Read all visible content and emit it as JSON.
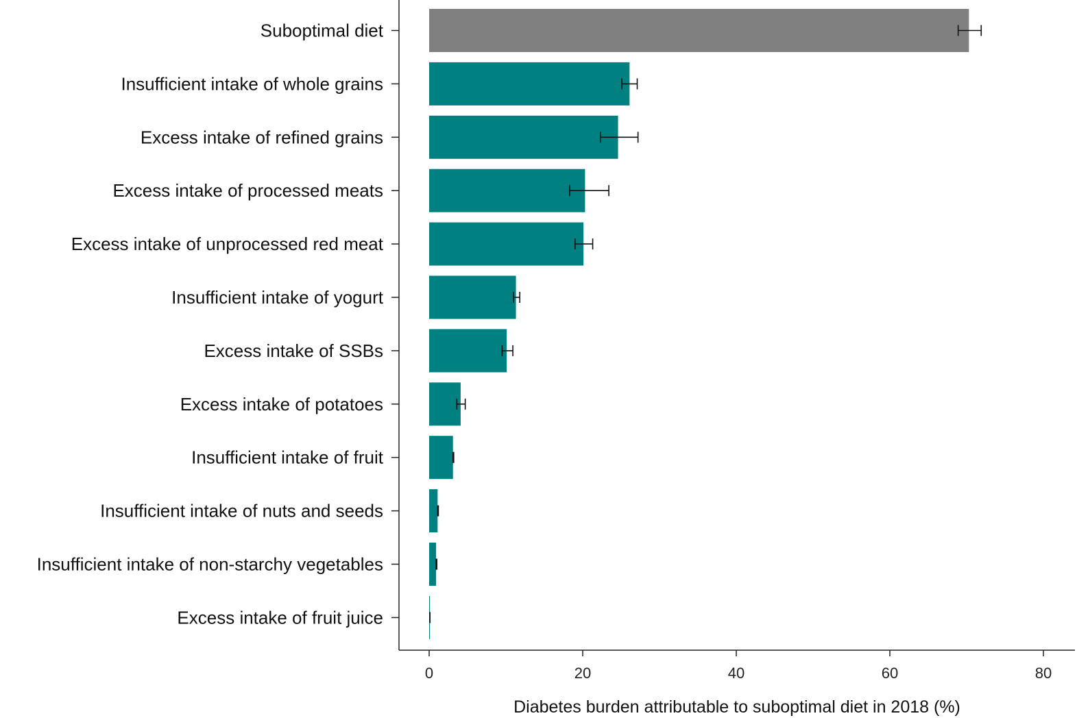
{
  "chart_data": {
    "type": "bar",
    "orientation": "horizontal",
    "title": "",
    "xlabel": "Diabetes burden attributable to suboptimal diet in 2018 (%)",
    "ylabel": "",
    "xlim": [
      0,
      80
    ],
    "xticks": [
      0,
      20,
      40,
      60,
      80
    ],
    "grid": false,
    "legend": "none",
    "colors": {
      "total": "#808080",
      "component": "#008080",
      "error_bar": "#111111"
    },
    "categories": [
      "Suboptimal diet",
      "Insufficient intake of whole grains",
      "Excess intake of refined grains",
      "Excess intake of processed meats",
      "Excess intake of unprocessed red meat",
      "Insufficient intake of yogurt",
      "Excess intake of SSBs",
      "Excess intake of potatoes",
      "Insufficient intake of fruit",
      "Insufficient intake of nuts and seeds",
      "Insufficient intake of non-starchy vegetables",
      "Excess intake of fruit juice"
    ],
    "values": [
      70.3,
      26.1,
      24.6,
      20.3,
      20.1,
      11.3,
      10.1,
      4.1,
      3.1,
      1.1,
      0.9,
      0.1
    ],
    "error_low": [
      68.9,
      25.1,
      22.3,
      18.3,
      19.0,
      11.0,
      9.5,
      3.6,
      3.1,
      1.1,
      0.9,
      0.1
    ],
    "error_high": [
      71.9,
      27.1,
      27.2,
      23.4,
      21.3,
      11.8,
      10.9,
      4.7,
      3.2,
      1.2,
      1.0,
      0.1
    ]
  }
}
